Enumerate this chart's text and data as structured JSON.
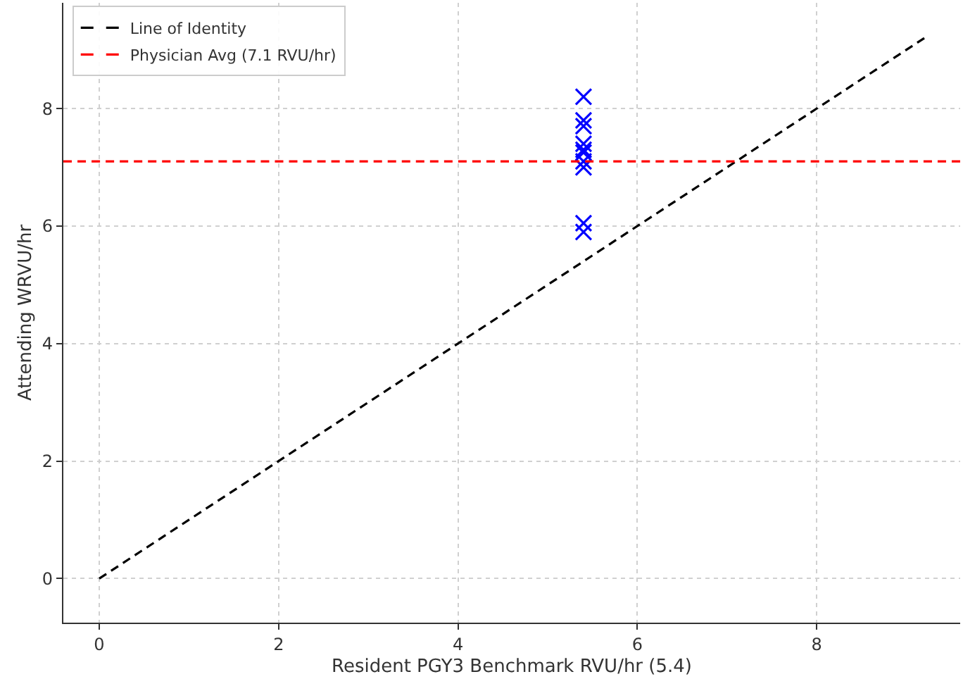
{
  "chart_data": {
    "type": "scatter",
    "xlabel": "Resident PGY3 Benchmark RVU/hr (5.4)",
    "ylabel": "Attending WRVU/hr",
    "xlim": [
      -0.4,
      9.6
    ],
    "ylim": [
      -0.75,
      9.8
    ],
    "xticks": [
      0,
      2,
      4,
      6,
      8
    ],
    "yticks": [
      0,
      2,
      4,
      6,
      8
    ],
    "grid": true,
    "legend": "top left",
    "series": [
      {
        "type": "line",
        "name": "Line of Identity",
        "color": "#000000",
        "line_style": "dashed",
        "x": [
          0,
          9.2
        ],
        "values": [
          0,
          9.2
        ]
      },
      {
        "marker": "cross",
        "color": "#0000ff",
        "x": [
          5.4,
          5.4,
          5.4,
          5.4,
          5.4,
          5.4,
          5.4,
          5.4,
          5.4,
          5.4
        ],
        "values": [
          8.2,
          7.8,
          7.7,
          7.4,
          7.3,
          7.25,
          7.1,
          7.0,
          6.05,
          5.9
        ]
      }
    ],
    "ref_lines": [
      {
        "axis": "y",
        "value": 7.1,
        "label": "Physician Avg (7.1 RVU/hr)",
        "color": "#ff0000",
        "line_style": "dashed"
      }
    ]
  }
}
